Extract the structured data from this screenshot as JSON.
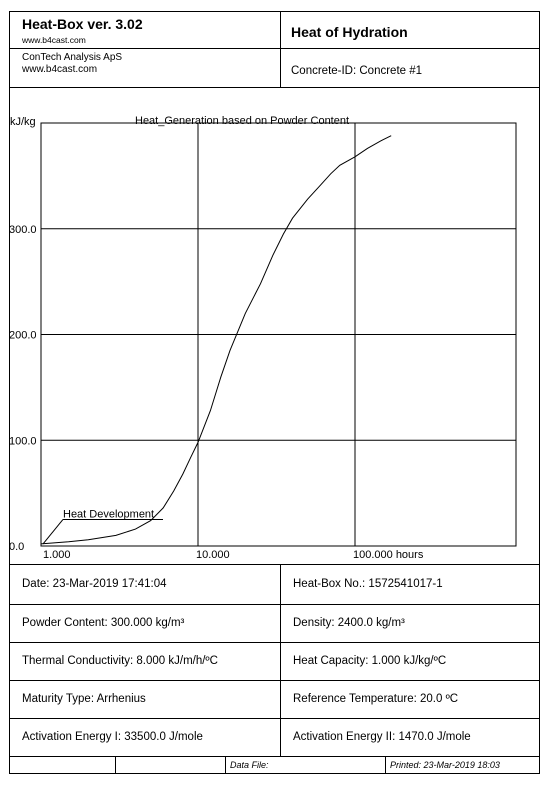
{
  "header": {
    "app_title": "Heat-Box ver. 3.02",
    "app_url": "www.b4cast.com",
    "report_title": "Heat of Hydration",
    "company": "ConTech Analysis ApS",
    "company_url": "www.b4cast.com",
    "concrete_id": "Concrete-ID: Concrete #1"
  },
  "chart_data": {
    "type": "line",
    "title": "Heat_Generation based on Powder Content",
    "ylabel": "kJ/kg",
    "xscale": "log",
    "xlim": [
      1,
      200
    ],
    "ylim": [
      0,
      400
    ],
    "grid": true,
    "x_ticks": [
      {
        "value": 1,
        "label": "1.000"
      },
      {
        "value": 10,
        "label": "10.000"
      },
      {
        "value": 100,
        "label": "100.000 hours"
      }
    ],
    "y_ticks": [
      {
        "value": 0,
        "label": "0.0"
      },
      {
        "value": 100,
        "label": "100.0"
      },
      {
        "value": 200,
        "label": "200.0"
      },
      {
        "value": 300,
        "label": "300.0"
      }
    ],
    "series": [
      {
        "x": [
          1.0,
          1.5,
          2.0,
          3.0,
          4.0,
          5.0,
          6.0,
          7.0,
          8.0,
          9.0,
          10.0,
          12.0,
          14.0,
          16.0,
          20.0,
          25.0,
          30.0,
          35.0,
          40.0,
          50.0,
          60.0,
          70.0,
          80.0,
          100.0,
          120.0,
          150.0,
          170.0
        ],
        "values": [
          2,
          4,
          6,
          10,
          16,
          24,
          36,
          52,
          68,
          84,
          98,
          128,
          160,
          185,
          220,
          248,
          275,
          295,
          310,
          328,
          341,
          352,
          360,
          368,
          376,
          384,
          388
        ]
      }
    ],
    "annotations": [
      {
        "text": "Heat Development",
        "x": 2.0,
        "y": 27
      }
    ]
  },
  "fields": {
    "date": "Date: 23-Mar-2019 17:41:04",
    "heatbox_no": "Heat-Box No.:  1572541017-1",
    "powder": "Powder Content: 300.000 kg/m³",
    "density": "Density: 2400.0 kg/m³",
    "conductivity": "Thermal Conductivity: 8.000 kJ/m/h/ºC",
    "capacity": "Heat Capacity: 1.000 kJ/kg/ºC",
    "maturity": "Maturity Type: Arrhenius",
    "ref_temp": "Reference Temperature: 20.0 ºC",
    "act1": "Activation Energy I: 33500.0 J/mole",
    "act2": "Activation Energy II: 1470.0 J/mole"
  },
  "footer": {
    "data_file": "Data File:",
    "printed": "Printed: 23-Mar-2019 18:03"
  }
}
